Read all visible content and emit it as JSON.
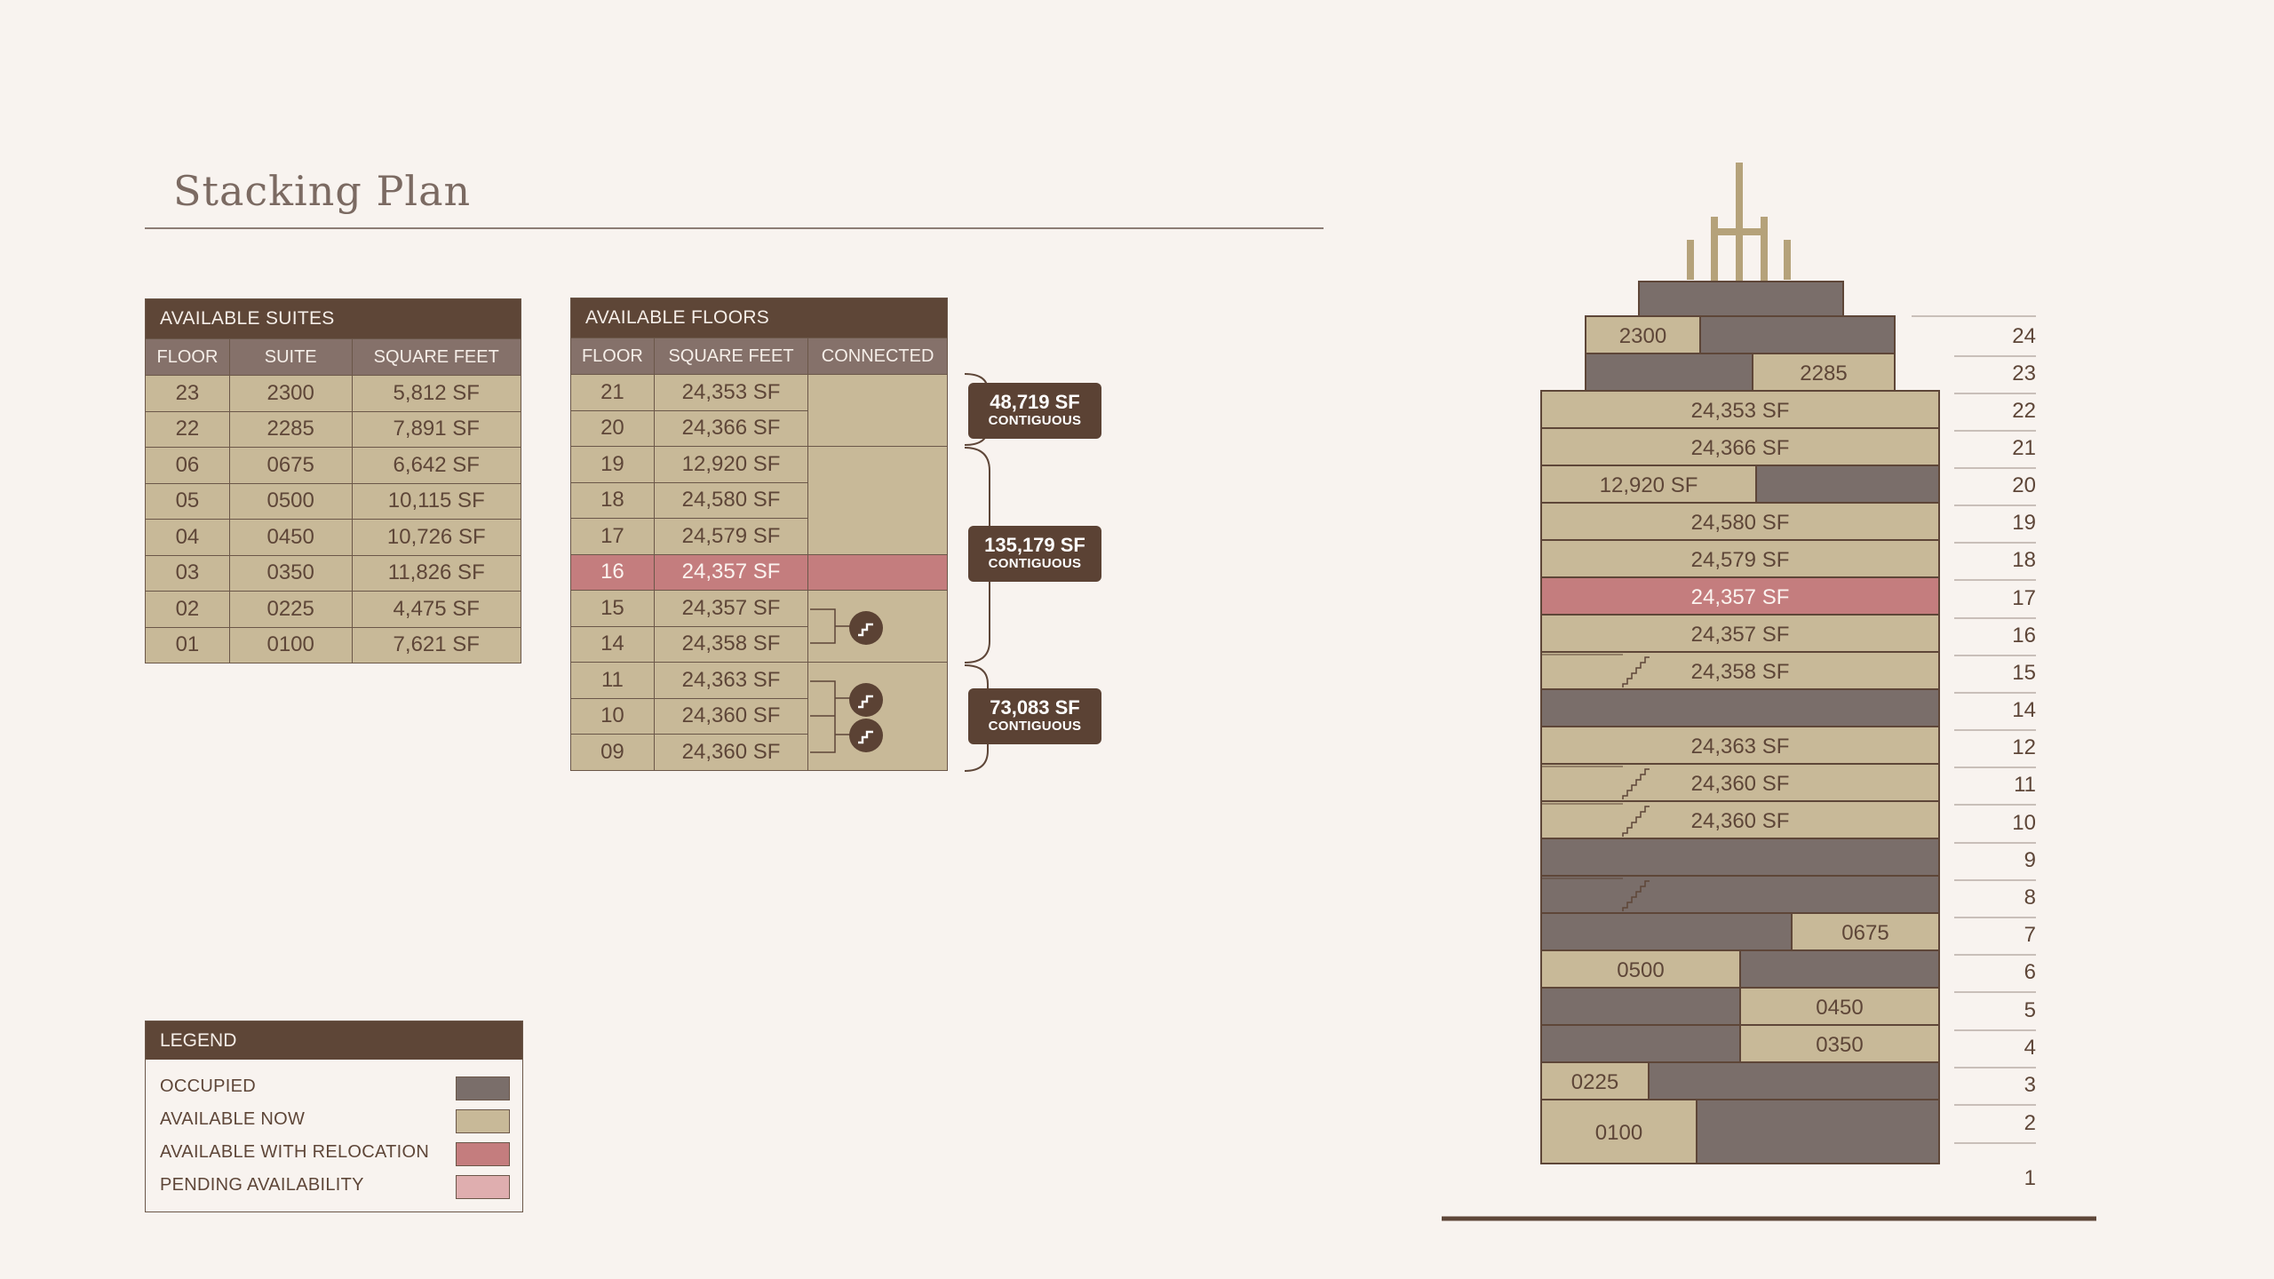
{
  "title": "Stacking Plan",
  "suites_table": {
    "title": "AVAILABLE SUITES",
    "headers": [
      "FLOOR",
      "SUITE",
      "SQUARE FEET"
    ],
    "rows": [
      {
        "floor": "23",
        "suite": "2300",
        "sf": "5,812 SF"
      },
      {
        "floor": "22",
        "suite": "2285",
        "sf": "7,891 SF"
      },
      {
        "floor": "06",
        "suite": "0675",
        "sf": "6,642 SF"
      },
      {
        "floor": "05",
        "suite": "0500",
        "sf": "10,115 SF"
      },
      {
        "floor": "04",
        "suite": "0450",
        "sf": "10,726 SF"
      },
      {
        "floor": "03",
        "suite": "0350",
        "sf": "11,826 SF"
      },
      {
        "floor": "02",
        "suite": "0225",
        "sf": "4,475 SF"
      },
      {
        "floor": "01",
        "suite": "0100",
        "sf": "7,621 SF"
      }
    ]
  },
  "floors_table": {
    "title": "AVAILABLE FLOORS",
    "headers": [
      "FLOOR",
      "SQUARE FEET",
      "CONNECTED"
    ],
    "rows": [
      {
        "floor": "21",
        "sf": "24,353 SF",
        "status": "available"
      },
      {
        "floor": "20",
        "sf": "24,366 SF",
        "status": "available"
      },
      {
        "floor": "19",
        "sf": "12,920 SF",
        "status": "available"
      },
      {
        "floor": "18",
        "sf": "24,580 SF",
        "status": "available"
      },
      {
        "floor": "17",
        "sf": "24,579 SF",
        "status": "available"
      },
      {
        "floor": "16",
        "sf": "24,357 SF",
        "status": "relocation"
      },
      {
        "floor": "15",
        "sf": "24,357 SF",
        "status": "available"
      },
      {
        "floor": "14",
        "sf": "24,358 SF",
        "status": "available"
      },
      {
        "floor": "11",
        "sf": "24,363 SF",
        "status": "available"
      },
      {
        "floor": "10",
        "sf": "24,360 SF",
        "status": "available"
      },
      {
        "floor": "09",
        "sf": "24,360 SF",
        "status": "available"
      }
    ]
  },
  "contiguous_badges": [
    {
      "value": "48,719 SF",
      "label": "CONTIGUOUS"
    },
    {
      "value": "135,179 SF",
      "label": "CONTIGUOUS"
    },
    {
      "value": "73,083 SF",
      "label": "CONTIGUOUS"
    }
  ],
  "stair_icon": "stair-icon",
  "legend": {
    "title": "LEGEND",
    "items": [
      {
        "label": "OCCUPIED",
        "color": "#7a6e6a"
      },
      {
        "label": "AVAILABLE NOW",
        "color": "#c8b998"
      },
      {
        "label": "AVAILABLE WITH RELOCATION",
        "color": "#c47d7e"
      },
      {
        "label": "PENDING AVAILABILITY",
        "color": "#dfaeaf"
      }
    ]
  },
  "colors": {
    "occupied": "#7a6e6a",
    "available": "#c8b998",
    "relocation": "#c47d7e",
    "pending": "#dfaeaf",
    "dark": "#5e4637"
  },
  "building": {
    "floor_numbers": [
      "24",
      "23",
      "22",
      "21",
      "20",
      "19",
      "18",
      "17",
      "16",
      "15",
      "14",
      "12",
      "11",
      "10",
      "9",
      "8",
      "7",
      "6",
      "5",
      "4",
      "3",
      "2",
      "1"
    ],
    "floors": [
      {
        "floor": "24",
        "segments": [
          {
            "status": "occupied",
            "fraction": 1,
            "label": ""
          }
        ]
      },
      {
        "floor": "23",
        "segments": [
          {
            "status": "available",
            "fraction": 0.37,
            "label": "2300"
          },
          {
            "status": "occupied",
            "fraction": 0.63,
            "label": ""
          }
        ]
      },
      {
        "floor": "22",
        "segments": [
          {
            "status": "occupied",
            "fraction": 0.54,
            "label": ""
          },
          {
            "status": "available",
            "fraction": 0.46,
            "label": "2285"
          }
        ]
      },
      {
        "floor": "21",
        "segments": [
          {
            "status": "available",
            "fraction": 1,
            "label": "24,353 SF"
          }
        ]
      },
      {
        "floor": "20",
        "segments": [
          {
            "status": "available",
            "fraction": 1,
            "label": "24,366 SF"
          }
        ]
      },
      {
        "floor": "19",
        "segments": [
          {
            "status": "available",
            "fraction": 0.54,
            "label": "12,920 SF"
          },
          {
            "status": "occupied",
            "fraction": 0.46,
            "label": ""
          }
        ]
      },
      {
        "floor": "18",
        "segments": [
          {
            "status": "available",
            "fraction": 1,
            "label": "24,580 SF"
          }
        ]
      },
      {
        "floor": "17",
        "segments": [
          {
            "status": "available",
            "fraction": 1,
            "label": "24,579 SF"
          }
        ]
      },
      {
        "floor": "16",
        "segments": [
          {
            "status": "relocation",
            "fraction": 1,
            "label": "24,357 SF"
          }
        ]
      },
      {
        "floor": "15",
        "segments": [
          {
            "status": "available",
            "fraction": 1,
            "label": "24,357 SF"
          }
        ]
      },
      {
        "floor": "14",
        "segments": [
          {
            "status": "available",
            "fraction": 1,
            "label": "24,358 SF"
          }
        ],
        "stair": true
      },
      {
        "floor": "12",
        "segments": [
          {
            "status": "occupied",
            "fraction": 1,
            "label": ""
          }
        ]
      },
      {
        "floor": "11",
        "segments": [
          {
            "status": "available",
            "fraction": 1,
            "label": "24,363 SF"
          }
        ]
      },
      {
        "floor": "10",
        "segments": [
          {
            "status": "available",
            "fraction": 1,
            "label": "24,360 SF"
          }
        ],
        "stair": true
      },
      {
        "floor": "9",
        "segments": [
          {
            "status": "available",
            "fraction": 1,
            "label": "24,360 SF"
          }
        ],
        "stair": true
      },
      {
        "floor": "8",
        "segments": [
          {
            "status": "occupied",
            "fraction": 1,
            "label": ""
          }
        ]
      },
      {
        "floor": "7",
        "segments": [
          {
            "status": "occupied",
            "fraction": 1,
            "label": ""
          }
        ],
        "stair": true
      },
      {
        "floor": "6",
        "segments": [
          {
            "status": "occupied",
            "fraction": 0.63,
            "label": ""
          },
          {
            "status": "available",
            "fraction": 0.37,
            "label": "0675"
          }
        ]
      },
      {
        "floor": "5",
        "segments": [
          {
            "status": "available",
            "fraction": 0.5,
            "label": "0500"
          },
          {
            "status": "occupied",
            "fraction": 0.5,
            "label": ""
          }
        ]
      },
      {
        "floor": "4",
        "segments": [
          {
            "status": "occupied",
            "fraction": 0.5,
            "label": ""
          },
          {
            "status": "available",
            "fraction": 0.5,
            "label": "0450"
          }
        ]
      },
      {
        "floor": "3",
        "segments": [
          {
            "status": "occupied",
            "fraction": 0.5,
            "label": ""
          },
          {
            "status": "available",
            "fraction": 0.5,
            "label": "0350"
          }
        ]
      },
      {
        "floor": "2",
        "segments": [
          {
            "status": "available",
            "fraction": 0.27,
            "label": "0225"
          },
          {
            "status": "occupied",
            "fraction": 0.73,
            "label": ""
          }
        ]
      },
      {
        "floor": "1",
        "segments": [
          {
            "status": "available",
            "fraction": 0.39,
            "label": "0100"
          },
          {
            "status": "occupied",
            "fraction": 0.61,
            "label": ""
          }
        ]
      }
    ]
  }
}
